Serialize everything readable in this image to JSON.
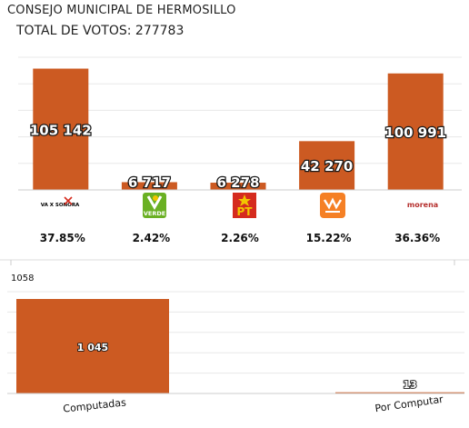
{
  "header": {
    "title": "CONSEJO MUNICIPAL DE HERMOSILLO",
    "total_label": "TOTAL DE VOTOS: 277783"
  },
  "chart_data": [
    {
      "type": "bar",
      "categories": [
        "VA X SONORA",
        "VERDE",
        "PT",
        "MOVIMIENTO CIUDADANO",
        "morena"
      ],
      "values": [
        105142,
        6717,
        6278,
        42270,
        100991
      ],
      "value_labels": [
        "105 142",
        "6 717",
        "6 278",
        "42 270",
        "100 991"
      ],
      "percentages": [
        "37.85%",
        "2.42%",
        "2.26%",
        "15.22%",
        "36.36%"
      ],
      "bar_color": "#cc5a22",
      "party_colors": {
        "vaxsonora": "#1a1a1a",
        "verde": "#6ab023",
        "pt": "#d52b1e",
        "mc": "#f58025",
        "morena": "#b5302e"
      },
      "logo_text": {
        "vaxsonora": "VA X SONORA",
        "verde": "VERDE",
        "pt": "PT",
        "morena": "morena"
      },
      "grid": true,
      "legend": "none"
    },
    {
      "type": "bar",
      "categories": [
        "Computadas",
        "Por Computar"
      ],
      "values": [
        1045,
        13
      ],
      "value_labels": [
        "1 045",
        "13"
      ],
      "max_label": "1058",
      "ylim": [
        0,
        1058
      ],
      "bar_color": "#cc5a22",
      "grid": true,
      "legend": "none"
    }
  ]
}
